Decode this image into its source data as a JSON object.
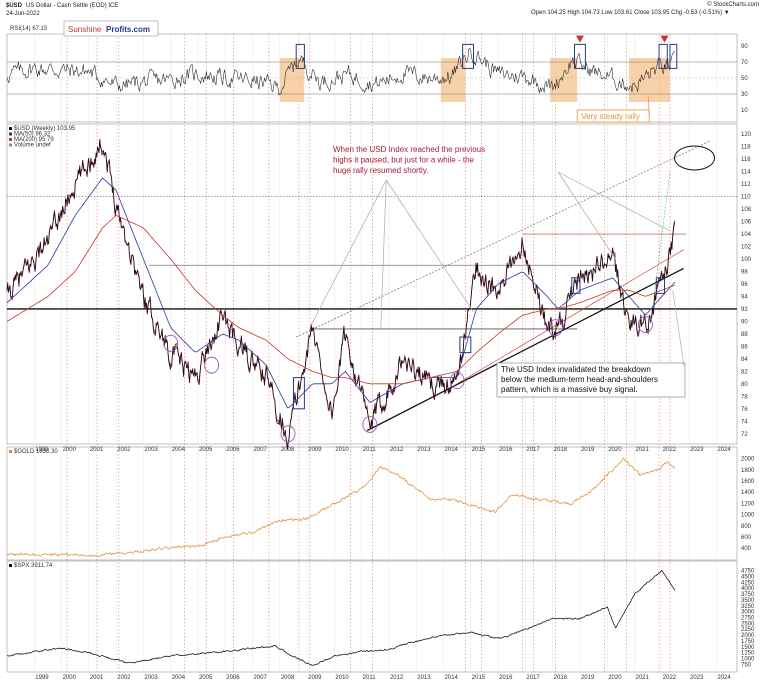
{
  "header": {
    "symbol": "$USD",
    "name": "US Dollar - Cash Settle (EOD) ICE",
    "date": "24-Jun-2022",
    "ohlc": "Open 104.25  High 104.73  Low 103.61  Close 103.95  Chg -0.53 (-0.51%) ▼",
    "credit": "© StockCharts.com"
  },
  "brand": {
    "part1": "Sunshine",
    "part2": "Profits.com",
    "color1": "#c0392b",
    "color2": "#1f3c88"
  },
  "rsi_panel": {
    "label": "RSI(14) 67.15",
    "ticks": [
      {
        "v": 90,
        "t": "90"
      },
      {
        "v": 70,
        "t": "70"
      },
      {
        "v": 50,
        "t": "50"
      },
      {
        "v": 30,
        "t": "30"
      },
      {
        "v": 10,
        "t": "10"
      }
    ],
    "levels": [
      70,
      30
    ],
    "annotation": "Very steady rally",
    "annotation_color": "#e69138"
  },
  "main_panel": {
    "legend": [
      "$USD (Weekly) 103.95",
      "MA(50) 96.32",
      "MA(200) 95.79",
      "Volume undef"
    ],
    "ticks": [
      "120",
      "118",
      "116",
      "114",
      "112",
      "110",
      "108",
      "106",
      "104",
      "102",
      "100",
      "98",
      "96",
      "94",
      "92",
      "90",
      "88",
      "86",
      "84",
      "82",
      "80",
      "78",
      "76",
      "74",
      "72"
    ],
    "annotation_top": [
      "When the USD Index reached the previous",
      "highs it paused, but just for a while - the",
      "huge rally resumed shortly."
    ],
    "annotation_top_color": "#a61c3c",
    "annotation_bottom": [
      "The USD Index invalidated the breakdown",
      "below the medium-term head-and-shoulders",
      "pattern, which is a massive buy signal."
    ],
    "price_color": "#111111",
    "ma50_color": "#2b3a9a",
    "ma200_color": "#c0392b"
  },
  "gold_panel": {
    "label": "$GOLD 1830.30",
    "ticks": [
      "2000",
      "1800",
      "1600",
      "1400",
      "1200",
      "1000",
      "800",
      "600",
      "400"
    ],
    "color": "#e08a2e"
  },
  "spx_panel": {
    "label": "$SPX 3911.74",
    "ticks": [
      "4750",
      "4500",
      "4250",
      "4000",
      "3750",
      "3500",
      "3250",
      "3000",
      "2750",
      "2500",
      "2250",
      "2000",
      "1750",
      "1500",
      "1250",
      "1000",
      "750"
    ],
    "color": "#111111"
  },
  "x_axis": {
    "years": [
      "1999",
      "2000",
      "2001",
      "2002",
      "2003",
      "2004",
      "2005",
      "2006",
      "2007",
      "2008",
      "2009",
      "2010",
      "2011",
      "2012",
      "2013",
      "2014",
      "2015",
      "2016",
      "2017",
      "2018",
      "2019",
      "2020",
      "2021",
      "2022",
      "2023",
      "2024"
    ]
  },
  "chart_data": [
    {
      "type": "line",
      "title": "US Dollar Index (weekly)",
      "x": [
        1998.0,
        1999.5,
        2000.5,
        2001.5,
        2002.0,
        2003.0,
        2004.0,
        2004.9,
        2005.9,
        2006.5,
        2007.5,
        2008.3,
        2009.2,
        2009.9,
        2010.4,
        2011.3,
        2012.5,
        2013.5,
        2014.5,
        2015.2,
        2016.0,
        2016.9,
        2017.8,
        2018.2,
        2019.0,
        2020.2,
        2020.8,
        2021.4,
        2022.0,
        2022.48
      ],
      "series": [
        {
          "name": "$USD (Weekly)",
          "values": [
            94.0,
            103.0,
            112.0,
            119.0,
            109.0,
            94.0,
            85.0,
            81.0,
            91.0,
            86.0,
            81.0,
            71.5,
            89.0,
            75.0,
            88.0,
            73.0,
            84.0,
            80.0,
            80.0,
            99.0,
            94.0,
            103.0,
            89.0,
            89.0,
            97.0,
            100.0,
            90.0,
            89.5,
            96.0,
            103.95
          ]
        },
        {
          "name": "MA(50)",
          "values": [
            93.0,
            99.0,
            107.0,
            113.0,
            111.0,
            100.0,
            89.0,
            85.0,
            88.0,
            87.0,
            83.0,
            76.0,
            80.0,
            80.0,
            82.0,
            77.0,
            80.0,
            81.0,
            81.0,
            92.0,
            96.0,
            98.0,
            94.0,
            92.0,
            95.0,
            97.0,
            94.0,
            91.0,
            94.0,
            96.3
          ]
        },
        {
          "name": "MA(200)",
          "values": [
            90.0,
            94.0,
            98.0,
            105.0,
            107.0,
            105.0,
            100.0,
            95.0,
            91.0,
            89.0,
            87.0,
            84.0,
            82.0,
            81.0,
            81.0,
            80.0,
            80.0,
            81.0,
            82.0,
            85.0,
            88.0,
            91.0,
            92.0,
            92.0,
            93.0,
            95.0,
            95.0,
            94.0,
            95.0,
            95.8
          ]
        }
      ],
      "ylim": [
        71,
        121
      ]
    },
    {
      "type": "line",
      "title": "RSI(14)",
      "x": [
        1998.0,
        1999.0,
        2000.0,
        2001.0,
        2002.0,
        2003.0,
        2004.0,
        2005.0,
        2006.0,
        2007.0,
        2008.0,
        2008.7,
        2009.5,
        2010.5,
        2011.5,
        2012.5,
        2013.5,
        2014.3,
        2015.0,
        2016.0,
        2017.0,
        2018.0,
        2018.7,
        2019.5,
        2020.5,
        2021.0,
        2021.8,
        2022.48
      ],
      "series": [
        {
          "name": "RSI(14)",
          "values": [
            55,
            62,
            60,
            58,
            40,
            45,
            48,
            55,
            50,
            47,
            38,
            75,
            45,
            55,
            42,
            56,
            50,
            52,
            85,
            55,
            52,
            38,
            72,
            58,
            45,
            40,
            62,
            67.15
          ]
        }
      ],
      "ylim": [
        0,
        100
      ]
    },
    {
      "type": "line",
      "title": "$GOLD",
      "x": [
        1998.0,
        1999.0,
        2000.0,
        2001.0,
        2002.0,
        2003.0,
        2004.0,
        2005.0,
        2006.0,
        2007.0,
        2008.0,
        2009.0,
        2010.0,
        2011.0,
        2011.7,
        2012.5,
        2013.5,
        2014.5,
        2015.9,
        2016.5,
        2017.5,
        2018.7,
        2019.5,
        2020.6,
        2021.2,
        2021.9,
        2022.2,
        2022.48
      ],
      "series": [
        {
          "name": "$GOLD",
          "values": [
            295,
            285,
            280,
            265,
            310,
            350,
            405,
            430,
            600,
            680,
            900,
            920,
            1200,
            1450,
            1850,
            1650,
            1280,
            1250,
            1050,
            1350,
            1270,
            1200,
            1450,
            2000,
            1700,
            1800,
            1950,
            1830.3
          ]
        }
      ],
      "ylim": [
        260,
        2100
      ]
    },
    {
      "type": "line",
      "title": "$SPX",
      "x": [
        1998.0,
        1999.0,
        2000.0,
        2001.0,
        2002.5,
        2003.0,
        2004.0,
        2005.0,
        2006.0,
        2007.8,
        2008.5,
        2009.2,
        2010.0,
        2011.0,
        2012.0,
        2013.0,
        2014.0,
        2015.0,
        2016.1,
        2017.0,
        2018.0,
        2019.0,
        2020.0,
        2020.3,
        2021.0,
        2022.0,
        2022.48
      ],
      "series": [
        {
          "name": "$SPX",
          "values": [
            1100,
            1300,
            1450,
            1250,
            800,
            900,
            1120,
            1200,
            1300,
            1550,
            1100,
            700,
            1100,
            1300,
            1400,
            1750,
            2000,
            2100,
            1850,
            2250,
            2700,
            2700,
            3200,
            2300,
            3750,
            4750,
            3911.74
          ]
        }
      ],
      "ylim": [
        600,
        4900
      ]
    }
  ]
}
